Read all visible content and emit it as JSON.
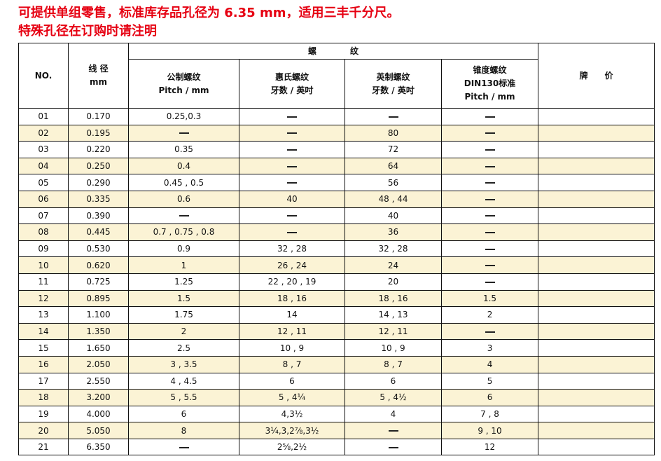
{
  "notice": {
    "line1": "可提供单组零售，标准库存品孔径为 6.35 mm，适用三丰千分尺。",
    "line2": "特殊孔径在订购时请注明"
  },
  "header": {
    "no": "NO.",
    "diameter_l1": "线 径",
    "diameter_l2": "mm",
    "thread_group": "螺　　　　纹",
    "metric_l1": "公制螺纹",
    "metric_l2": "Pitch / mm",
    "whitworth_l1": "惠氏螺纹",
    "whitworth_l2": "牙数 / 英吋",
    "imperial_l1": "英制螺纹",
    "imperial_l2": "牙数 / 英吋",
    "taper_l1": "锥度螺纹",
    "taper_l2": "DIN130标准",
    "taper_l3": "Pitch / mm",
    "price": "牌　　价"
  },
  "rows": [
    {
      "no": "01",
      "dia": "0.170",
      "metric": "0.25,0.3",
      "whit": "—",
      "imp": "—",
      "taper": "—",
      "price": ""
    },
    {
      "no": "02",
      "dia": "0.195",
      "metric": "—",
      "whit": "—",
      "imp": "80",
      "taper": "—",
      "price": ""
    },
    {
      "no": "03",
      "dia": "0.220",
      "metric": "0.35",
      "whit": "—",
      "imp": "72",
      "taper": "—",
      "price": ""
    },
    {
      "no": "04",
      "dia": "0.250",
      "metric": "0.4",
      "whit": "—",
      "imp": "64",
      "taper": "—",
      "price": ""
    },
    {
      "no": "05",
      "dia": "0.290",
      "metric": "0.45 , 0.5",
      "whit": "—",
      "imp": "56",
      "taper": "—",
      "price": ""
    },
    {
      "no": "06",
      "dia": "0.335",
      "metric": "0.6",
      "whit": "40",
      "imp": "48 , 44",
      "taper": "—",
      "price": ""
    },
    {
      "no": "07",
      "dia": "0.390",
      "metric": "—",
      "whit": "—",
      "imp": "40",
      "taper": "—",
      "price": ""
    },
    {
      "no": "08",
      "dia": "0.445",
      "metric": "0.7 , 0.75 , 0.8",
      "whit": "—",
      "imp": "36",
      "taper": "—",
      "price": ""
    },
    {
      "no": "09",
      "dia": "0.530",
      "metric": "0.9",
      "whit": "32 , 28",
      "imp": "32 , 28",
      "taper": "—",
      "price": ""
    },
    {
      "no": "10",
      "dia": "0.620",
      "metric": "1",
      "whit": "26 , 24",
      "imp": "24",
      "taper": "—",
      "price": ""
    },
    {
      "no": "11",
      "dia": "0.725",
      "metric": "1.25",
      "whit": "22 , 20 , 19",
      "imp": "20",
      "taper": "—",
      "price": ""
    },
    {
      "no": "12",
      "dia": "0.895",
      "metric": "1.5",
      "whit": "18 , 16",
      "imp": "18 , 16",
      "taper": "1.5",
      "price": ""
    },
    {
      "no": "13",
      "dia": "1.100",
      "metric": "1.75",
      "whit": "14",
      "imp": "14 , 13",
      "taper": "2",
      "price": ""
    },
    {
      "no": "14",
      "dia": "1.350",
      "metric": "2",
      "whit": "12 , 11",
      "imp": "12 , 11",
      "taper": "—",
      "price": ""
    },
    {
      "no": "15",
      "dia": "1.650",
      "metric": "2.5",
      "whit": "10 , 9",
      "imp": "10 , 9",
      "taper": "3",
      "price": ""
    },
    {
      "no": "16",
      "dia": "2.050",
      "metric": "3 , 3.5",
      "whit": "8 , 7",
      "imp": "8 , 7",
      "taper": "4",
      "price": ""
    },
    {
      "no": "17",
      "dia": "2.550",
      "metric": "4 , 4.5",
      "whit": "6",
      "imp": "6",
      "taper": "5",
      "price": ""
    },
    {
      "no": "18",
      "dia": "3.200",
      "metric": "5 , 5.5",
      "whit": "5 , 4¼",
      "imp": "5 , 4½",
      "taper": "6",
      "price": ""
    },
    {
      "no": "19",
      "dia": "4.000",
      "metric": "6",
      "whit": "4,3½",
      "imp": "4",
      "taper": "7 , 8",
      "price": ""
    },
    {
      "no": "20",
      "dia": "5.050",
      "metric": "8",
      "whit": "3¼,3,2⅞,3½",
      "imp": "—",
      "taper": "9 , 10",
      "price": ""
    },
    {
      "no": "21",
      "dia": "6.350",
      "metric": "—",
      "whit": "2⅝,2½",
      "imp": "—",
      "taper": "12",
      "price": ""
    }
  ],
  "colors": {
    "notice": "#e60012",
    "alt_row": "#fbf3d5",
    "border": "#111111"
  }
}
